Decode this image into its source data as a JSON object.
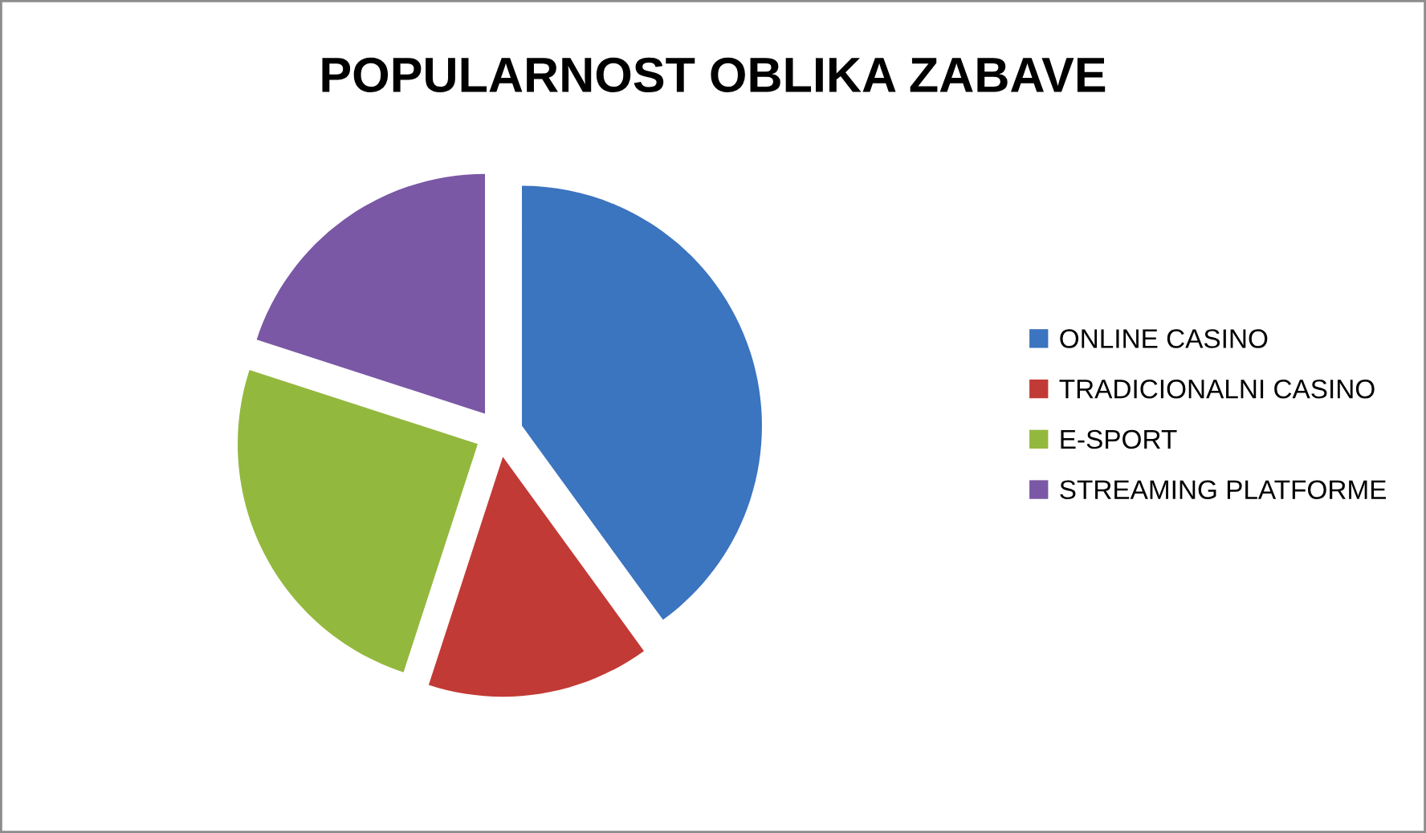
{
  "chart_data": {
    "type": "pie",
    "title": "POPULARNOST OBLIKA ZABAVE",
    "categories": [
      "ONLINE CASINO",
      "TRADICIONALNI CASINO",
      "E-SPORT",
      "STREAMING PLATFORME"
    ],
    "values": [
      40,
      15,
      25,
      20
    ],
    "colors": [
      "#3b74bf",
      "#c23a35",
      "#93b83e",
      "#7a58a5"
    ],
    "legend": "right"
  }
}
